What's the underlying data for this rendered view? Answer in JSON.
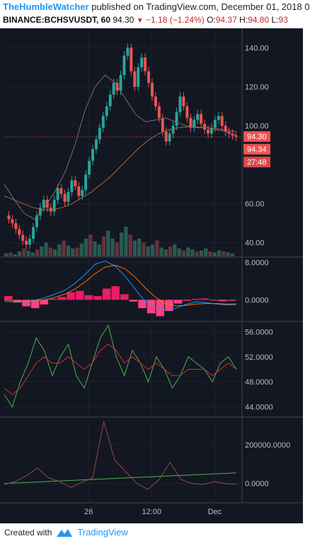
{
  "header": {
    "user": "TheHumbleWatcher",
    "published": "published on TradingView.com, December 01, 2018 0",
    "symbol": "BINANCE:BCHSVUSDT, 60",
    "last": "94.30",
    "change": "−1.18 (−1.24%)",
    "o_label": "O:",
    "o_val": "94.37",
    "h_label": "H:",
    "h_val": "94.80",
    "l_label": "L:",
    "l_val": "93"
  },
  "footer": {
    "created_with": "Created with",
    "brand": "TradingView"
  },
  "chart_data": [
    {
      "type": "candlestick",
      "panel": "price",
      "y_ticks": [
        "140.00",
        "120.00",
        "100.00",
        "60.00",
        "40.00"
      ],
      "ylim": [
        33,
        150
      ],
      "price_labels": [
        "94.30",
        "94.34",
        "27:48"
      ],
      "candles_close": [
        52,
        50,
        47,
        44,
        41,
        39,
        42,
        48,
        54,
        58,
        62,
        58,
        56,
        62,
        68,
        65,
        61,
        66,
        72,
        69,
        64,
        67,
        75,
        82,
        88,
        93,
        99,
        105,
        110,
        116,
        122,
        118,
        126,
        136,
        140,
        128,
        120,
        130,
        135,
        128,
        122,
        115,
        110,
        104,
        97,
        92,
        96,
        100,
        107,
        115,
        110,
        104,
        99,
        103,
        106,
        101,
        98,
        96,
        99,
        103,
        105,
        100,
        97,
        96,
        95,
        94.3
      ],
      "ma_slow": [
        64,
        62,
        60,
        58,
        57,
        57,
        58,
        60,
        63,
        66,
        70,
        74,
        79,
        84,
        89,
        93,
        96,
        98,
        99,
        99.5,
        99.3,
        99,
        98.5,
        97.8,
        97
      ],
      "ma_fast": [
        70,
        62,
        55,
        52,
        58,
        66,
        76,
        90,
        108,
        120,
        126,
        122,
        114,
        106,
        102,
        103,
        104,
        102,
        100,
        99,
        99,
        98,
        97,
        95
      ],
      "volume": [
        3,
        4,
        2,
        5,
        8,
        6,
        4,
        7,
        10,
        14,
        9,
        7,
        12,
        16,
        11,
        8,
        9,
        13,
        18,
        22,
        15,
        12,
        20,
        26,
        18,
        14,
        24,
        30,
        22,
        16,
        18,
        14,
        10,
        12,
        16,
        9,
        7,
        10,
        12,
        8,
        6,
        9,
        7,
        5,
        6,
        8,
        5,
        4,
        6,
        5,
        4,
        3
      ]
    },
    {
      "type": "line",
      "panel": "macd",
      "y_ticks": [
        "8.0000",
        "0.0000"
      ],
      "ylim": [
        -4.5,
        9
      ],
      "series": [
        {
          "values": [
            -0.3,
            -0.5,
            -0.4,
            -0.1,
            0.4,
            1.2,
            2.0,
            3.5,
            5.4,
            7.6,
            8.3,
            7.2,
            5.0,
            2.2,
            -0.5,
            -1.6,
            -2.2,
            -1.8,
            -1.0,
            -0.4,
            -0.6,
            -0.9,
            -1.1,
            -1.0
          ],
          "color": "#2196f3"
        },
        {
          "values": [
            0.0,
            -0.2,
            -0.3,
            -0.3,
            0.0,
            0.5,
            1.2,
            2.3,
            3.8,
            5.6,
            7.0,
            7.4,
            6.6,
            4.8,
            2.5,
            0.5,
            -0.8,
            -1.3,
            -1.2,
            -0.9,
            -0.8,
            -0.8,
            -0.9,
            -0.9
          ],
          "color": "#ff6d00"
        }
      ],
      "histogram": [
        0.8,
        -0.6,
        -1.4,
        -1.8,
        -1.0,
        0.2,
        0.6,
        1.6,
        1.9,
        1.0,
        0.8,
        2.4,
        2.9,
        1.2,
        -0.4,
        -1.8,
        -2.9,
        -3.5,
        -2.4,
        -0.8,
        -0.2,
        0.2,
        0.3,
        -0.1,
        -0.3,
        -0.2
      ]
    },
    {
      "type": "line",
      "panel": "rsi",
      "y_ticks": [
        "56.0000",
        "52.0000",
        "48.0000",
        "44.0000"
      ],
      "ylim": [
        42.5,
        57.5
      ],
      "series": [
        {
          "values": [
            46,
            44,
            48,
            51,
            55,
            53,
            49,
            52,
            54,
            49,
            47,
            51,
            55,
            57,
            52,
            49,
            53,
            51,
            48,
            52,
            50,
            47,
            49,
            52,
            51,
            50,
            48,
            51,
            52,
            50
          ],
          "color": "#4caf50"
        },
        {
          "values": [
            47,
            46,
            47,
            49,
            51,
            52,
            51,
            51,
            52,
            51,
            50,
            51,
            53,
            54,
            53,
            51,
            52,
            51,
            50,
            51,
            50,
            49,
            49,
            50,
            50,
            50,
            49,
            50,
            51,
            50
          ],
          "color": "#d32f2f"
        }
      ]
    },
    {
      "type": "line",
      "panel": "volume_osc",
      "y_ticks": [
        "200000.0000",
        "0.0000"
      ],
      "ylim": [
        -100000,
        340000
      ],
      "series": [
        {
          "values": [
            0,
            5000,
            10000,
            15000,
            20000,
            25000,
            30000,
            35000,
            40000,
            45000,
            50000,
            55000
          ],
          "color": "#4caf50"
        },
        {
          "values": [
            -5000,
            10000,
            40000,
            80000,
            30000,
            10000,
            -20000,
            5000,
            30000,
            320000,
            120000,
            60000,
            0,
            -30000,
            20000,
            110000,
            20000,
            0,
            -5000,
            10000,
            0,
            -5000
          ],
          "color": "#8d4a45"
        }
      ]
    }
  ],
  "x_axis": [
    "26",
    "12:00",
    "Dec"
  ]
}
